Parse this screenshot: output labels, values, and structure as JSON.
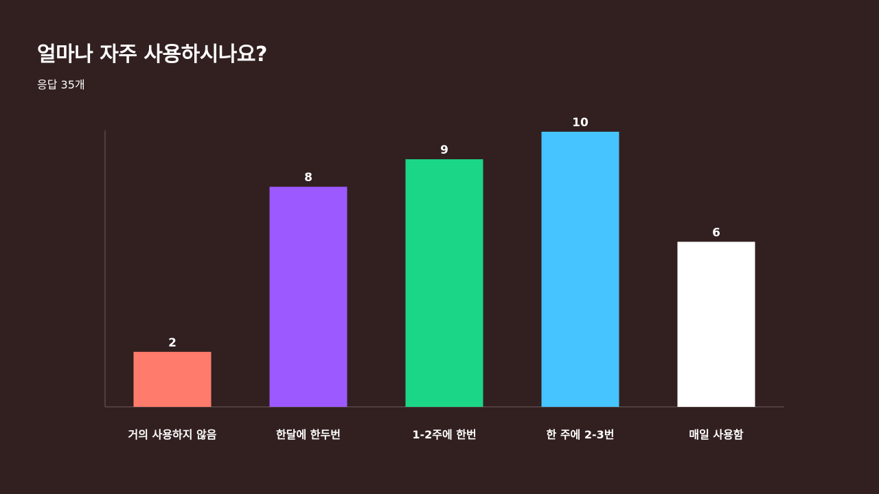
{
  "header": {
    "title": "얼마나 자주 사용하시나요?",
    "subtitle": "응답 35개"
  },
  "chart_data": {
    "type": "bar",
    "title": "얼마나 자주 사용하시나요?",
    "subtitle": "응답 35개",
    "categories": [
      "거의 사용하지 않음",
      "한달에 한두번",
      "1-2주에 한번",
      "한 주에 2-3번",
      "매일 사용함"
    ],
    "values": [
      2,
      8,
      9,
      10,
      6
    ],
    "value_labels": [
      "2",
      "8",
      "9",
      "10",
      "6"
    ],
    "colors": [
      "#ff7b6b",
      "#9c59ff",
      "#1bd687",
      "#45c4ff",
      "#ffffff"
    ],
    "ylim": [
      0,
      10
    ],
    "xlabel": "",
    "ylabel": "",
    "grid": false,
    "legend": "none"
  }
}
